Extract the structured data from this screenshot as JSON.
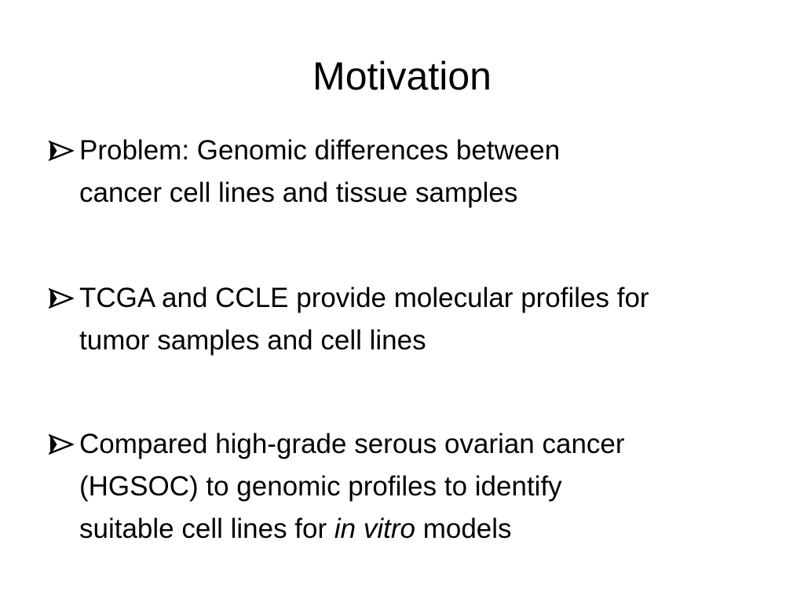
{
  "title": "Motivation",
  "bullets": [
    {
      "lines": [
        "Problem: Genomic differences between",
        "cancer cell lines and tissue samples"
      ]
    },
    {
      "lines": [
        "TCGA and CCLE provide molecular profiles for",
        "tumor samples and cell lines"
      ]
    },
    {
      "lines": [
        "Compared high-grade serous ovarian cancer",
        "(HGSOC) to genomic profiles to identify",
        "suitable cell lines for"
      ],
      "emphasis": "in vitro",
      "tail": "models"
    }
  ]
}
